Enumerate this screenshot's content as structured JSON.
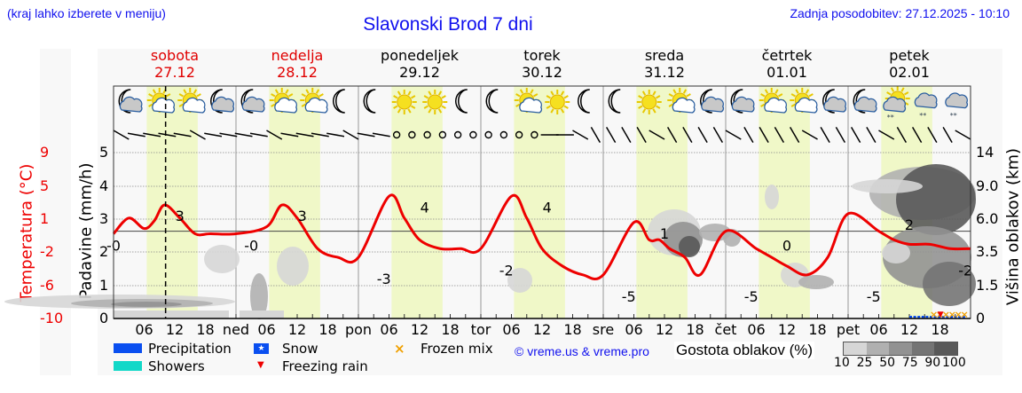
{
  "header": {
    "hint": "(kraj lahko izberete v meniju)",
    "title": "Slavonski Brod 7 dni",
    "updated": "Zadnja posodobitev: 27.12.2025 - 10:10"
  },
  "days": [
    {
      "name": "sobota",
      "date": "27.12",
      "weekend": true
    },
    {
      "name": "nedelja",
      "date": "28.12",
      "weekend": true
    },
    {
      "name": "ponedeljek",
      "date": "29.12",
      "weekend": false
    },
    {
      "name": "torek",
      "date": "30.12",
      "weekend": false
    },
    {
      "name": "sreda",
      "date": "31.12",
      "weekend": false
    },
    {
      "name": "četrtek",
      "date": "01.01",
      "weekend": false
    },
    {
      "name": "petek",
      "date": "02.01",
      "weekend": false
    }
  ],
  "axes": {
    "temp_label": "Temperatura (°C)",
    "temp_ticks": [
      "9",
      "5",
      "1",
      "-2",
      "-6",
      "-10"
    ],
    "precip_label": "Padavine (mm/h)",
    "precip_ticks": [
      "5",
      "4",
      "3",
      "2",
      "1",
      "0"
    ],
    "cloud_label": "Višina oblakov (km)",
    "cloud_ticks": [
      "14",
      "9.0",
      "6.0",
      "3.5",
      "1.5",
      "0"
    ],
    "x_labels": [
      "06",
      "12",
      "18",
      "ned",
      "06",
      "12",
      "18",
      "pon",
      "06",
      "12",
      "18",
      "tor",
      "06",
      "12",
      "18",
      "sre",
      "06",
      "12",
      "18",
      "čet",
      "06",
      "12",
      "18",
      "pet",
      "06",
      "12",
      "18"
    ]
  },
  "legend": {
    "precipitation": "Precipitation",
    "showers": "Showers",
    "snow": "Snow",
    "freezing_rain": "Freezing rain",
    "frozen_mix": "Frozen mix",
    "copyright": "© vreme.us & vreme.pro",
    "cloud_density_label": "Gostota oblakov (%)",
    "cloud_density_ticks": [
      "10",
      "25",
      "50",
      "75",
      "90",
      "100"
    ],
    "colors": {
      "precipitation": "#0a4ff0",
      "showers": "#12d8c8",
      "snow": "#0a4ff0",
      "freezing_rain": "#ee0000",
      "frozen_mix": "#f0a000",
      "temperature": "#ee0000",
      "daylight": "#f0f8c8"
    }
  },
  "icons": [
    "moon-cloud",
    "sun-cloud",
    "sun-cloud",
    "moon-cloud",
    "moon-cloud",
    "sun-cloud",
    "sun-cloud",
    "moon",
    "moon",
    "sun",
    "sun",
    "moon",
    "moon",
    "sun-cloud",
    "sun",
    "moon",
    "moon",
    "sun",
    "sun-cloud",
    "moon-cloud",
    "moon-cloud",
    "sun-cloud",
    "sun-cloud",
    "moon-cloud",
    "moon-cloud",
    "sun-cloud-snow",
    "cloud-snow",
    "cloud-snow"
  ],
  "chart_data": {
    "type": "line",
    "title": "Slavonski Brod 7 dni",
    "xlabel": "",
    "ylabel": "Temperatura (°C)",
    "ylim": [
      -10,
      9
    ],
    "secondary_axes": [
      {
        "label": "Padavine (mm/h)",
        "range": [
          0,
          5
        ]
      },
      {
        "label": "Višina oblakov (km)",
        "ticks": [
          0,
          1.5,
          3.5,
          6.0,
          9.0,
          14
        ]
      }
    ],
    "x_unit": "hours since Sat 27.12 00:00",
    "series": [
      {
        "name": "Temperatura",
        "x": [
          0,
          3,
          6,
          8,
          10,
          13,
          16,
          19,
          24,
          30,
          33,
          36,
          40,
          44,
          48,
          54,
          57,
          60,
          64,
          68,
          72,
          78,
          81,
          84,
          88,
          92,
          96,
          102,
          105,
          107,
          109,
          112,
          115,
          120,
          126,
          129,
          132,
          136,
          140,
          144,
          150,
          153,
          156,
          160,
          164,
          168
        ],
        "values": [
          -0.3,
          1.5,
          0.3,
          1.2,
          3,
          1.5,
          -0.3,
          -0.3,
          -0.3,
          0.5,
          3,
          1.5,
          -2,
          -3,
          -3,
          4,
          1.5,
          -1,
          -2,
          -2,
          -2,
          4,
          1.5,
          -2,
          -4,
          -5,
          -5,
          1,
          -1,
          -1,
          -2,
          -3,
          -5,
          0,
          -2,
          -3,
          -4,
          -5,
          -3,
          2,
          0,
          -1,
          -1.5,
          -1.5,
          -2,
          -2
        ]
      }
    ],
    "annotations": [
      {
        "x_hour": 0,
        "label": "-0"
      },
      {
        "x_hour": 13,
        "label": "3"
      },
      {
        "x_hour": 27,
        "label": "-0"
      },
      {
        "x_hour": 37,
        "label": "3"
      },
      {
        "x_hour": 53,
        "label": "-3"
      },
      {
        "x_hour": 61,
        "label": "4"
      },
      {
        "x_hour": 77,
        "label": "-2"
      },
      {
        "x_hour": 85,
        "label": "4"
      },
      {
        "x_hour": 101,
        "label": "-5"
      },
      {
        "x_hour": 108,
        "label": "1"
      },
      {
        "x_hour": 125,
        "label": "-5"
      },
      {
        "x_hour": 132,
        "label": "0"
      },
      {
        "x_hour": 149,
        "label": "-5"
      },
      {
        "x_hour": 156,
        "label": "2"
      },
      {
        "x_hour": 167,
        "label": "-2"
      }
    ],
    "current_time_hour": 10.2,
    "grid": true,
    "legend_position": "bottom"
  }
}
